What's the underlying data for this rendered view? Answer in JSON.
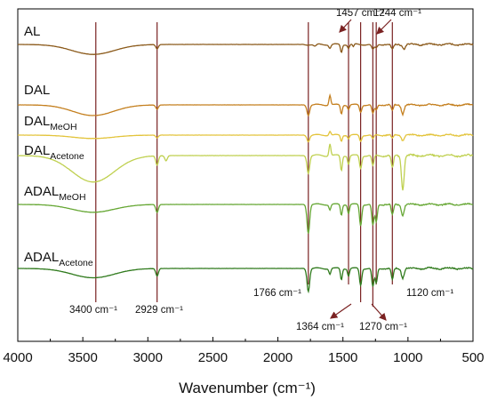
{
  "chart_data": {
    "type": "line",
    "title": "",
    "xlabel": "Wavenumber (cm⁻¹)",
    "ylabel": "",
    "xlim": [
      4000,
      500
    ],
    "x_reversed": true,
    "y_axis_ticks": false,
    "grid": false,
    "x_ticks": [
      {
        "value": 4000,
        "label": "4000"
      },
      {
        "value": 3500,
        "label": "3500"
      },
      {
        "value": 3000,
        "label": "3000"
      },
      {
        "value": 2500,
        "label": "2500"
      },
      {
        "value": 2000,
        "label": "2000"
      },
      {
        "value": 1500,
        "label": "1500"
      },
      {
        "value": 1000,
        "label": "1000"
      },
      {
        "value": 500,
        "label": "500"
      }
    ],
    "series": [
      {
        "name": "AL",
        "label_main": "AL",
        "label_sub": "",
        "color": "#8B5A1B",
        "baseline": 0.9,
        "features": [
          [
            3420,
            230,
            0.28
          ],
          [
            2929,
            14,
            0.12
          ],
          [
            1715,
            16,
            0.06
          ],
          [
            1600,
            12,
            0.1
          ],
          [
            1512,
            10,
            0.22
          ],
          [
            1457,
            10,
            0.1
          ],
          [
            1420,
            8,
            0.08
          ],
          [
            1270,
            14,
            0.15
          ],
          [
            1244,
            12,
            0.1
          ],
          [
            1120,
            14,
            0.14
          ],
          [
            1030,
            14,
            0.12
          ]
        ]
      },
      {
        "name": "DAL",
        "label_main": "DAL",
        "label_sub": "",
        "color": "#C47F1E",
        "baseline": 0.76,
        "features": [
          [
            3420,
            220,
            0.3
          ],
          [
            2929,
            14,
            0.12
          ],
          [
            1766,
            14,
            0.28
          ],
          [
            1600,
            10,
            -0.28
          ],
          [
            1512,
            10,
            0.25
          ],
          [
            1457,
            10,
            0.12
          ],
          [
            1364,
            12,
            0.2
          ],
          [
            1270,
            12,
            0.25
          ],
          [
            1244,
            12,
            0.15
          ],
          [
            1120,
            12,
            0.18
          ],
          [
            1040,
            14,
            0.25
          ]
        ]
      },
      {
        "name": "DAL_MeOH",
        "label_main": "DAL",
        "label_sub": "MeOH",
        "color": "#E3C43C",
        "baseline": 0.58,
        "features": [
          [
            3420,
            220,
            0.1
          ],
          [
            2929,
            14,
            0.08
          ],
          [
            1766,
            14,
            0.18
          ],
          [
            1600,
            10,
            -0.12
          ],
          [
            1512,
            10,
            0.18
          ],
          [
            1457,
            10,
            0.1
          ],
          [
            1364,
            12,
            0.18
          ],
          [
            1270,
            12,
            0.12
          ],
          [
            1120,
            12,
            0.1
          ],
          [
            1040,
            14,
            0.15
          ]
        ]
      },
      {
        "name": "DAL_Acetone",
        "label_main": "DAL",
        "label_sub": "Acetone",
        "color": "#BFD04F",
        "baseline": 0.58,
        "features": [
          [
            3420,
            230,
            0.62
          ],
          [
            2929,
            14,
            0.22
          ],
          [
            2860,
            14,
            0.12
          ],
          [
            1766,
            14,
            0.4
          ],
          [
            1600,
            10,
            -0.28
          ],
          [
            1512,
            10,
            0.35
          ],
          [
            1457,
            10,
            0.2
          ],
          [
            1364,
            12,
            0.3
          ],
          [
            1270,
            12,
            0.25
          ],
          [
            1120,
            12,
            0.3
          ],
          [
            1040,
            14,
            0.8
          ]
        ]
      },
      {
        "name": "ADAL_MeOH",
        "label_main": "ADAL",
        "label_sub": "MeOH",
        "color": "#66A734",
        "baseline": 0.28,
        "features": [
          [
            3420,
            230,
            0.22
          ],
          [
            2929,
            14,
            0.22
          ],
          [
            1766,
            14,
            0.8
          ],
          [
            1600,
            10,
            0.15
          ],
          [
            1512,
            10,
            0.3
          ],
          [
            1457,
            10,
            0.25
          ],
          [
            1364,
            12,
            0.6
          ],
          [
            1270,
            12,
            0.6
          ],
          [
            1244,
            12,
            0.5
          ],
          [
            1120,
            12,
            0.3
          ],
          [
            1040,
            14,
            0.3
          ]
        ]
      },
      {
        "name": "ADAL_Acetone",
        "label_main": "ADAL",
        "label_sub": "Acetone",
        "color": "#2F7A1C",
        "baseline": 0.03,
        "features": [
          [
            3420,
            230,
            0.25
          ],
          [
            2929,
            14,
            0.2
          ],
          [
            1766,
            14,
            0.6
          ],
          [
            1600,
            10,
            0.15
          ],
          [
            1512,
            10,
            0.3
          ],
          [
            1457,
            10,
            0.2
          ],
          [
            1364,
            12,
            0.45
          ],
          [
            1270,
            12,
            0.5
          ],
          [
            1244,
            12,
            0.4
          ],
          [
            1120,
            12,
            0.3
          ],
          [
            1040,
            14,
            0.25
          ]
        ]
      }
    ],
    "reference_lines": [
      3400,
      2929,
      1766,
      1457,
      1364,
      1270,
      1244,
      1120
    ],
    "annotations": [
      {
        "value": 3400,
        "text": "3400 cm⁻¹"
      },
      {
        "value": 2929,
        "text": "2929 cm⁻¹"
      },
      {
        "value": 1766,
        "text": "1766 cm⁻¹"
      },
      {
        "value": 1457,
        "text": "1457 cm⁻¹"
      },
      {
        "value": 1364,
        "text": "1364 cm⁻¹"
      },
      {
        "value": 1270,
        "text": "1270 cm⁻¹"
      },
      {
        "value": 1244,
        "text": "1244 cm⁻¹"
      },
      {
        "value": 1120,
        "text": "1120 cm⁻¹"
      }
    ],
    "reference_line_color": "#7A2222"
  }
}
